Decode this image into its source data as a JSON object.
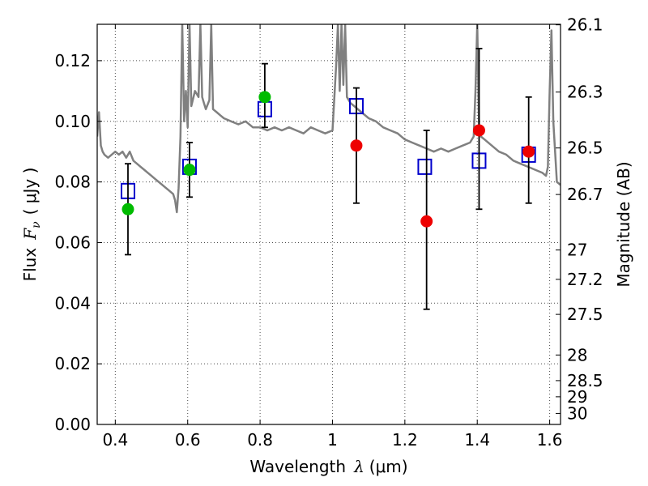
{
  "chart_data": {
    "type": "scatter",
    "xlabel_prefix": "Wavelength",
    "xlabel_symbol": "λ",
    "xlabel_unit": "(μm)",
    "ylabel_prefix": "Flux",
    "ylabel_symbol": "F",
    "ylabel_sub": "ν",
    "ylabel_unit": "( μJy )",
    "y2label": "Magnitude (AB)",
    "xlim": [
      0.35,
      1.63
    ],
    "ylim": [
      0.0,
      0.132
    ],
    "xticks": [
      0.4,
      0.6,
      0.8,
      1.0,
      1.2,
      1.4,
      1.6
    ],
    "xtick_labels": [
      "0.4",
      "0.6",
      "0.8",
      "1",
      "1.2",
      "1.4",
      "1.6"
    ],
    "yticks": [
      0.0,
      0.02,
      0.04,
      0.06,
      0.08,
      0.1,
      0.12
    ],
    "ytick_labels": [
      "0.00",
      "0.02",
      "0.04",
      "0.06",
      "0.08",
      "0.10",
      "0.12"
    ],
    "y2ticks": [
      26.1,
      26.3,
      26.5,
      26.7,
      27,
      27.2,
      27.5,
      28,
      28.5,
      29,
      30
    ],
    "y2tick_labels": [
      "26.1",
      "26.3",
      "26.5",
      "26.7",
      "27",
      "27.2",
      "27.5",
      "28",
      "28.5",
      "29",
      "30"
    ],
    "grid": true,
    "series": [
      {
        "name": "Model SED",
        "kind": "line",
        "color": "#808080",
        "x": [
          0.35,
          0.355,
          0.36,
          0.365,
          0.37,
          0.38,
          0.39,
          0.4,
          0.41,
          0.42,
          0.43,
          0.44,
          0.45,
          0.46,
          0.47,
          0.48,
          0.49,
          0.5,
          0.51,
          0.52,
          0.53,
          0.54,
          0.55,
          0.56,
          0.565,
          0.57,
          0.575,
          0.58,
          0.585,
          0.59,
          0.595,
          0.6,
          0.605,
          0.61,
          0.62,
          0.63,
          0.635,
          0.64,
          0.645,
          0.65,
          0.66,
          0.665,
          0.67,
          0.68,
          0.69,
          0.7,
          0.72,
          0.74,
          0.76,
          0.78,
          0.8,
          0.82,
          0.84,
          0.86,
          0.88,
          0.9,
          0.92,
          0.94,
          0.96,
          0.98,
          1.0,
          1.01,
          1.015,
          1.02,
          1.025,
          1.03,
          1.035,
          1.04,
          1.05,
          1.06,
          1.08,
          1.1,
          1.12,
          1.14,
          1.16,
          1.18,
          1.2,
          1.22,
          1.24,
          1.26,
          1.28,
          1.3,
          1.32,
          1.34,
          1.36,
          1.38,
          1.39,
          1.395,
          1.4,
          1.405,
          1.41,
          1.42,
          1.44,
          1.46,
          1.48,
          1.5,
          1.52,
          1.54,
          1.56,
          1.58,
          1.59,
          1.595,
          1.6,
          1.605,
          1.61,
          1.62,
          1.63
        ],
        "y": [
          0.095,
          0.103,
          0.092,
          0.09,
          0.089,
          0.088,
          0.089,
          0.09,
          0.089,
          0.09,
          0.088,
          0.09,
          0.087,
          0.086,
          0.085,
          0.084,
          0.083,
          0.082,
          0.081,
          0.08,
          0.079,
          0.078,
          0.077,
          0.076,
          0.074,
          0.07,
          0.078,
          0.095,
          0.132,
          0.1,
          0.11,
          0.098,
          0.132,
          0.105,
          0.11,
          0.108,
          0.132,
          0.108,
          0.106,
          0.104,
          0.107,
          0.132,
          0.104,
          0.103,
          0.102,
          0.101,
          0.1,
          0.099,
          0.1,
          0.098,
          0.098,
          0.097,
          0.098,
          0.097,
          0.098,
          0.097,
          0.096,
          0.098,
          0.097,
          0.096,
          0.097,
          0.118,
          0.132,
          0.11,
          0.132,
          0.112,
          0.132,
          0.108,
          0.106,
          0.105,
          0.103,
          0.101,
          0.1,
          0.098,
          0.097,
          0.096,
          0.094,
          0.093,
          0.092,
          0.091,
          0.09,
          0.091,
          0.09,
          0.091,
          0.092,
          0.093,
          0.095,
          0.11,
          0.132,
          0.097,
          0.095,
          0.094,
          0.092,
          0.09,
          0.089,
          0.087,
          0.086,
          0.085,
          0.084,
          0.083,
          0.082,
          0.085,
          0.11,
          0.13,
          0.1,
          0.08,
          0.079
        ]
      },
      {
        "name": "Model band flux",
        "kind": "open-square",
        "color": "#0000cc",
        "x": [
          0.435,
          0.605,
          0.813,
          1.066,
          1.255,
          1.405,
          1.542
        ],
        "y": [
          0.077,
          0.085,
          0.104,
          0.105,
          0.085,
          0.087,
          0.089
        ]
      },
      {
        "name": "Observed (green)",
        "kind": "filled-circle",
        "color": "#00bb00",
        "x": [
          0.435,
          0.605,
          0.813
        ],
        "y": [
          0.071,
          0.084,
          0.108
        ],
        "yerr_low": [
          0.056,
          0.075,
          0.098
        ],
        "yerr_high": [
          0.086,
          0.093,
          0.119
        ]
      },
      {
        "name": "Observed (red)",
        "kind": "filled-circle",
        "color": "#ee0000",
        "x": [
          1.066,
          1.26,
          1.405,
          1.542
        ],
        "y": [
          0.092,
          0.067,
          0.097,
          0.09
        ],
        "yerr_low": [
          0.073,
          0.038,
          0.071,
          0.073
        ],
        "yerr_high": [
          0.111,
          0.097,
          0.124,
          0.108
        ]
      }
    ]
  }
}
